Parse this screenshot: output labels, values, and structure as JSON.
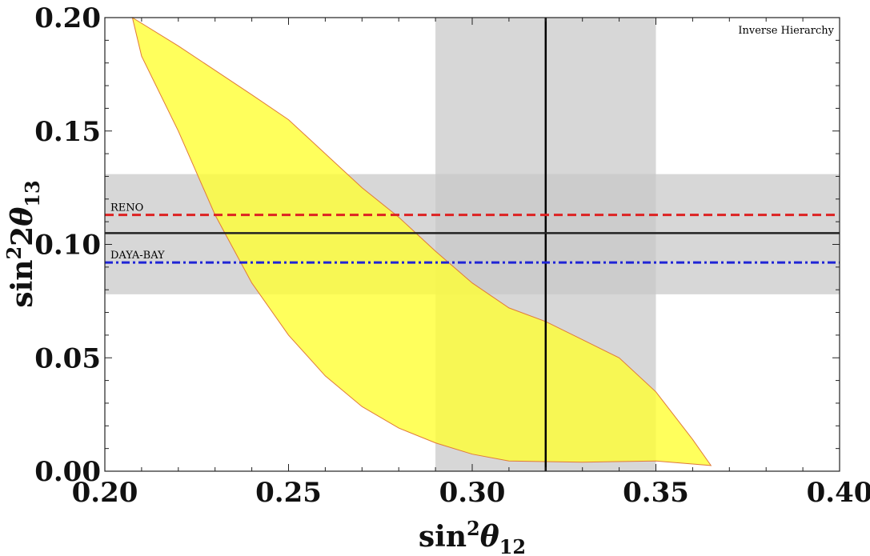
{
  "chart_data": {
    "type": "area",
    "annotation": "Inverse Hierarchy",
    "xlabel": {
      "base": "sin",
      "sup": "2",
      "theta": "θ",
      "sub": "12"
    },
    "ylabel": {
      "base": "sin",
      "sup": "2",
      "pre": "2",
      "theta": "θ",
      "sub": "13"
    },
    "xlim": [
      0.2,
      0.4
    ],
    "ylim": [
      0.0,
      0.2
    ],
    "xticks": [
      0.2,
      0.25,
      0.3,
      0.35,
      0.4
    ],
    "xtick_labels": [
      "0.20",
      "0.25",
      "0.30",
      "0.35",
      "0.40"
    ],
    "yticks": [
      0.0,
      0.05,
      0.1,
      0.15,
      0.2
    ],
    "ytick_labels": [
      "0.00",
      "0.05",
      "0.10",
      "0.15",
      "0.20"
    ],
    "bands": {
      "vertical": {
        "x": [
          0.29,
          0.35
        ],
        "color": "#c8c8c8"
      },
      "horizontal": {
        "y": [
          0.078,
          0.131
        ],
        "color": "#c8c8c8"
      }
    },
    "lines": [
      {
        "name": "best-fit-x",
        "orientation": "vertical",
        "value": 0.32,
        "style": "solid",
        "color": "#000000"
      },
      {
        "name": "best-fit-y",
        "orientation": "horizontal",
        "value": 0.105,
        "style": "solid",
        "color": "#222222"
      },
      {
        "name": "RENO",
        "label": "RENO",
        "orientation": "horizontal",
        "value": 0.113,
        "style": "dashed",
        "color": "#dd2222"
      },
      {
        "name": "DAYA-BAY",
        "label": "DAYA-BAY",
        "orientation": "horizontal",
        "value": 0.092,
        "style": "dashdot",
        "color": "#1f24d6"
      }
    ],
    "region": {
      "name": "allowed-region",
      "fill": "#ffff33",
      "stroke": "#e07a3a",
      "upper_boundary": [
        [
          0.2075,
          0.2
        ],
        [
          0.22,
          0.1875
        ],
        [
          0.24,
          0.166
        ],
        [
          0.25,
          0.155
        ],
        [
          0.26,
          0.14
        ],
        [
          0.27,
          0.125
        ],
        [
          0.28,
          0.112
        ],
        [
          0.29,
          0.097
        ],
        [
          0.3,
          0.083
        ],
        [
          0.31,
          0.072
        ],
        [
          0.32,
          0.066
        ],
        [
          0.33,
          0.058
        ],
        [
          0.34,
          0.05
        ],
        [
          0.35,
          0.035
        ],
        [
          0.36,
          0.014
        ],
        [
          0.365,
          0.0025
        ]
      ],
      "lower_boundary": [
        [
          0.365,
          0.0025
        ],
        [
          0.35,
          0.0045
        ],
        [
          0.33,
          0.004
        ],
        [
          0.31,
          0.0045
        ],
        [
          0.3,
          0.0075
        ],
        [
          0.29,
          0.0125
        ],
        [
          0.28,
          0.019
        ],
        [
          0.27,
          0.0285
        ],
        [
          0.26,
          0.042
        ],
        [
          0.25,
          0.06
        ],
        [
          0.24,
          0.083
        ],
        [
          0.23,
          0.113
        ],
        [
          0.22,
          0.15
        ],
        [
          0.21,
          0.183
        ],
        [
          0.2075,
          0.2
        ]
      ]
    },
    "grid": false
  }
}
